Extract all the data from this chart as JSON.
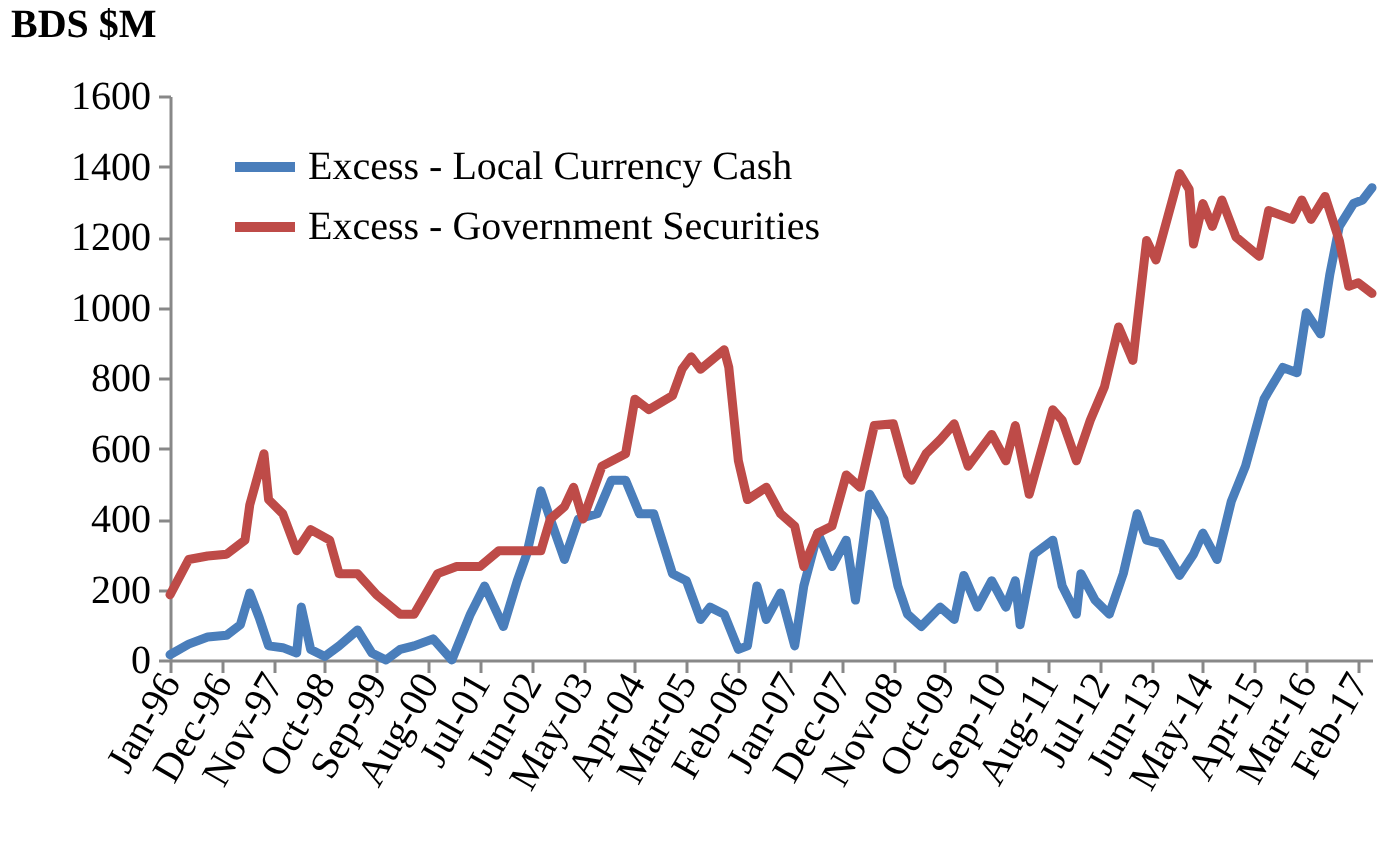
{
  "chart_data": {
    "type": "line",
    "ylabel": "BDS $M",
    "legend": "top left",
    "grid": false,
    "line_style": "solid",
    "xlim": [
      "1996-01",
      "2017-05"
    ],
    "ylim": [
      0,
      1600
    ],
    "yticks": [
      0,
      200,
      400,
      600,
      800,
      1000,
      1200,
      1400,
      1600
    ],
    "xticks": [
      {
        "value": "1996-01",
        "label": "Jan-96"
      },
      {
        "value": "1996-12",
        "label": "Dec-96"
      },
      {
        "value": "1997-11",
        "label": "Nov-97"
      },
      {
        "value": "1998-10",
        "label": "Oct-98"
      },
      {
        "value": "1999-09",
        "label": "Sep-99"
      },
      {
        "value": "2000-08",
        "label": "Aug-00"
      },
      {
        "value": "2001-07",
        "label": "Jul-01"
      },
      {
        "value": "2002-06",
        "label": "Jun-02"
      },
      {
        "value": "2003-05",
        "label": "May-03"
      },
      {
        "value": "2004-04",
        "label": "Apr-04"
      },
      {
        "value": "2005-03",
        "label": "Mar-05"
      },
      {
        "value": "2006-02",
        "label": "Feb-06"
      },
      {
        "value": "2007-01",
        "label": "Jan-07"
      },
      {
        "value": "2007-12",
        "label": "Dec-07"
      },
      {
        "value": "2008-11",
        "label": "Nov-08"
      },
      {
        "value": "2009-10",
        "label": "Oct-09"
      },
      {
        "value": "2010-09",
        "label": "Sep-10"
      },
      {
        "value": "2011-08",
        "label": "Aug-11"
      },
      {
        "value": "2012-07",
        "label": "Jul-12"
      },
      {
        "value": "2013-06",
        "label": "Jun-13"
      },
      {
        "value": "2014-05",
        "label": "May-14"
      },
      {
        "value": "2015-04",
        "label": "Apr-15"
      },
      {
        "value": "2016-03",
        "label": "Mar-16"
      },
      {
        "value": "2017-02",
        "label": "Feb-17"
      }
    ],
    "series": [
      {
        "name": "Excess - Local Currency Cash",
        "color": "#4a7ebb",
        "x": [
          "1996-01",
          "1996-05",
          "1996-09",
          "1997-01",
          "1997-04",
          "1997-06",
          "1997-08",
          "1997-10",
          "1998-01",
          "1998-04",
          "1998-05",
          "1998-07",
          "1998-10",
          "1999-01",
          "1999-05",
          "1999-08",
          "1999-11",
          "2000-02",
          "2000-05",
          "2000-09",
          "2001-01",
          "2001-05",
          "2001-08",
          "2001-12",
          "2002-03",
          "2002-05",
          "2002-08",
          "2002-10",
          "2003-01",
          "2003-04",
          "2003-08",
          "2003-11",
          "2004-02",
          "2004-05",
          "2004-08",
          "2004-12",
          "2005-03",
          "2005-06",
          "2005-08",
          "2005-11",
          "2006-02",
          "2006-04",
          "2006-06",
          "2006-08",
          "2006-11",
          "2007-02",
          "2007-04",
          "2007-07",
          "2007-10",
          "2008-01",
          "2008-03",
          "2008-06",
          "2008-09",
          "2008-12",
          "2009-02",
          "2009-05",
          "2009-09",
          "2009-12",
          "2010-02",
          "2010-05",
          "2010-08",
          "2010-11",
          "2011-01",
          "2011-02",
          "2011-05",
          "2011-09",
          "2011-11",
          "2012-02",
          "2012-03",
          "2012-06",
          "2012-09",
          "2012-12",
          "2013-03",
          "2013-05",
          "2013-08",
          "2013-12",
          "2014-03",
          "2014-05",
          "2014-08",
          "2014-11",
          "2015-02",
          "2015-06",
          "2015-10",
          "2016-01",
          "2016-03",
          "2016-06",
          "2016-08",
          "2016-10",
          "2017-01",
          "2017-03",
          "2017-05"
        ],
        "values": [
          15,
          45,
          65,
          70,
          100,
          190,
          120,
          40,
          35,
          20,
          150,
          30,
          10,
          40,
          85,
          20,
          0,
          30,
          40,
          60,
          0,
          130,
          210,
          95,
          225,
          300,
          480,
          400,
          285,
          400,
          415,
          510,
          510,
          415,
          415,
          245,
          225,
          115,
          150,
          130,
          30,
          40,
          210,
          115,
          190,
          40,
          210,
          360,
          265,
          340,
          170,
          470,
          400,
          210,
          130,
          95,
          150,
          115,
          240,
          150,
          225,
          150,
          225,
          100,
          300,
          340,
          210,
          130,
          245,
          170,
          130,
          245,
          415,
          340,
          330,
          240,
          300,
          360,
          285,
          450,
          550,
          740,
          830,
          815,
          985,
          925,
          1095,
          1230,
          1295,
          1305,
          1340
        ]
      },
      {
        "name": "Excess - Government Securities",
        "color": "#be4b48",
        "x": [
          "1996-01",
          "1996-05",
          "1996-09",
          "1997-01",
          "1997-05",
          "1997-06",
          "1997-09",
          "1997-10",
          "1998-01",
          "1998-04",
          "1998-07",
          "1998-11",
          "1999-01",
          "1999-05",
          "1999-09",
          "2000-02",
          "2000-05",
          "2000-10",
          "2001-02",
          "2001-07",
          "2001-11",
          "2002-05",
          "2002-08",
          "2002-10",
          "2003-01",
          "2003-03",
          "2003-05",
          "2003-09",
          "2004-02",
          "2004-04",
          "2004-07",
          "2004-12",
          "2005-02",
          "2005-04",
          "2005-06",
          "2005-11",
          "2005-12",
          "2006-02",
          "2006-04",
          "2006-08",
          "2006-11",
          "2007-02",
          "2007-04",
          "2007-07",
          "2007-10",
          "2008-01",
          "2008-04",
          "2008-07",
          "2008-11",
          "2009-02",
          "2009-03",
          "2009-06",
          "2009-09",
          "2009-12",
          "2010-03",
          "2010-08",
          "2010-11",
          "2011-01",
          "2011-04",
          "2011-09",
          "2011-11",
          "2012-02",
          "2012-05",
          "2012-08",
          "2012-11",
          "2013-02",
          "2013-05",
          "2013-07",
          "2013-12",
          "2014-02",
          "2014-03",
          "2014-05",
          "2014-07",
          "2014-09",
          "2014-12",
          "2015-05",
          "2015-07",
          "2015-12",
          "2016-02",
          "2016-04",
          "2016-07",
          "2016-10",
          "2016-12",
          "2017-02",
          "2017-05"
        ],
        "values": [
          185,
          285,
          295,
          300,
          340,
          440,
          585,
          455,
          415,
          310,
          370,
          340,
          245,
          245,
          185,
          130,
          130,
          245,
          265,
          265,
          310,
          310,
          310,
          400,
          435,
          490,
          400,
          550,
          585,
          740,
          710,
          750,
          825,
          860,
          825,
          880,
          830,
          565,
          455,
          490,
          415,
          380,
          265,
          360,
          380,
          525,
          490,
          665,
          670,
          525,
          510,
          585,
          625,
          670,
          550,
          640,
          565,
          665,
          470,
          710,
          680,
          565,
          680,
          775,
          945,
          850,
          1190,
          1135,
          1380,
          1335,
          1180,
          1295,
          1230,
          1305,
          1200,
          1145,
          1275,
          1250,
          1305,
          1250,
          1315,
          1190,
          1060,
          1070,
          1040
        ]
      }
    ]
  }
}
